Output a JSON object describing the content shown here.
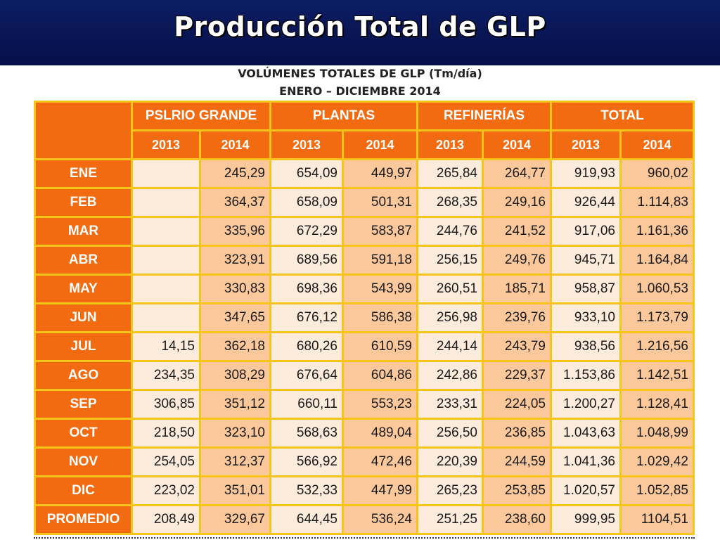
{
  "slide_title": "Producción Total de GLP",
  "caption_line1": "VOLÚMENES TOTALES DE GLP (Tm/día)",
  "caption_line2": "ENERO – DICIEMBRE 2014",
  "colors": {
    "title_bar": "#0c1d63",
    "header_orange": "#f26b10",
    "grid_gold": "#f7c51a",
    "cell_2013": "#fdebdc",
    "cell_2014": "#fbc89b"
  },
  "table": {
    "groups": [
      "PSLRIO GRANDE",
      "PLANTAS",
      "REFINERÍAS",
      "TOTAL"
    ],
    "years": [
      "2013",
      "2014",
      "2013",
      "2014",
      "2013",
      "2014",
      "2013",
      "2014"
    ],
    "rows": [
      {
        "label": "ENE",
        "values": [
          "",
          "245,29",
          "654,09",
          "449,97",
          "265,84",
          "264,77",
          "919,93",
          "960,02"
        ]
      },
      {
        "label": "FEB",
        "values": [
          "",
          "364,37",
          "658,09",
          "501,31",
          "268,35",
          "249,16",
          "926,44",
          "1.114,83"
        ]
      },
      {
        "label": "MAR",
        "values": [
          "",
          "335,96",
          "672,29",
          "583,87",
          "244,76",
          "241,52",
          "917,06",
          "1.161,36"
        ]
      },
      {
        "label": "ABR",
        "values": [
          "",
          "323,91",
          "689,56",
          "591,18",
          "256,15",
          "249,76",
          "945,71",
          "1.164,84"
        ]
      },
      {
        "label": "MAY",
        "values": [
          "",
          "330,83",
          "698,36",
          "543,99",
          "260,51",
          "185,71",
          "958,87",
          "1.060,53"
        ]
      },
      {
        "label": "JUN",
        "values": [
          "",
          "347,65",
          "676,12",
          "586,38",
          "256,98",
          "239,76",
          "933,10",
          "1.173,79"
        ]
      },
      {
        "label": "JUL",
        "values": [
          "14,15",
          "362,18",
          "680,26",
          "610,59",
          "244,14",
          "243,79",
          "938,56",
          "1.216,56"
        ]
      },
      {
        "label": "AGO",
        "values": [
          "234,35",
          "308,29",
          "676,64",
          "604,86",
          "242,86",
          "229,37",
          "1.153,86",
          "1.142,51"
        ]
      },
      {
        "label": "SEP",
        "values": [
          "306,85",
          "351,12",
          "660,11",
          "553,23",
          "233,31",
          "224,05",
          "1.200,27",
          "1.128,41"
        ]
      },
      {
        "label": "OCT",
        "values": [
          "218,50",
          "323,10",
          "568,63",
          "489,04",
          "256,50",
          "236,85",
          "1.043,63",
          "1.048,99"
        ]
      },
      {
        "label": "NOV",
        "values": [
          "254,05",
          "312,37",
          "566,92",
          "472,46",
          "220,39",
          "244,59",
          "1.041,36",
          "1.029,42"
        ]
      },
      {
        "label": "DIC",
        "values": [
          "223,02",
          "351,01",
          "532,33",
          "447,99",
          "265,23",
          "253,85",
          "1.020,57",
          "1.052,85"
        ]
      },
      {
        "label": "PROMEDIO",
        "values": [
          "208,49",
          "329,67",
          "644,45",
          "536,24",
          "251,25",
          "238,60",
          "999,95",
          "1104,51"
        ]
      }
    ]
  }
}
